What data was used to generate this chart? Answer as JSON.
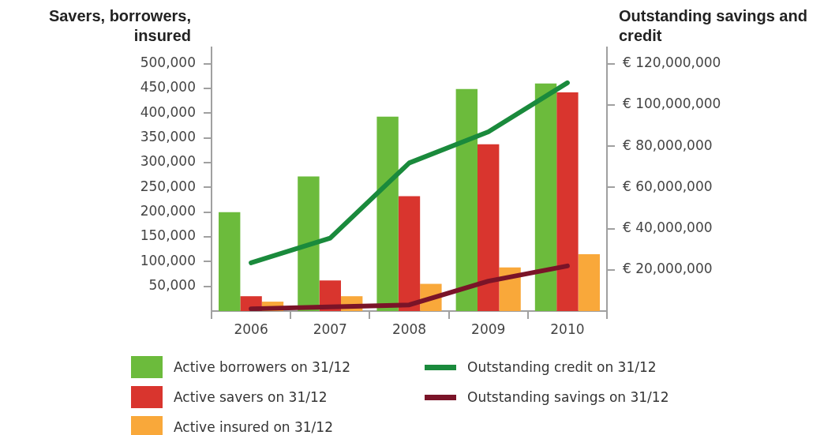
{
  "chart_data": {
    "type": "bar",
    "ylabel": "Savers, borrowers, insured",
    "y2label": "Outstanding savings and credit",
    "categories": [
      "2006",
      "2007",
      "2008",
      "2009",
      "2010"
    ],
    "series": [
      {
        "name": "Active borrowers on 31/12",
        "color": "#6cbb3c",
        "values": [
          200000,
          272000,
          393000,
          449000,
          460000
        ]
      },
      {
        "name": "Active savers on 31/12",
        "color": "#d9352e",
        "values": [
          30000,
          62000,
          232000,
          337000,
          442000
        ]
      },
      {
        "name": "Active insured on 31/12",
        "color": "#f9a83a",
        "values": [
          19000,
          30000,
          55000,
          88000,
          115000
        ]
      },
      {
        "name": "Outstanding credit on 31/12",
        "type": "line",
        "axis": "y2",
        "color": "#1a8a3c",
        "values": [
          23400000,
          35400000,
          71900000,
          87000000,
          110800000
        ]
      },
      {
        "name": "Outstanding savings on 31/12",
        "type": "line",
        "axis": "y2",
        "color": "#7a1428",
        "values": [
          1100000,
          2000000,
          3000000,
          14500000,
          21900000
        ]
      }
    ],
    "ylim": [
      0,
      533000
    ],
    "yticks": [
      {
        "value": 50000,
        "label": "50,000"
      },
      {
        "value": 100000,
        "label": "100,000"
      },
      {
        "value": 150000,
        "label": "150,000"
      },
      {
        "value": 200000,
        "label": "200,000"
      },
      {
        "value": 250000,
        "label": "250,000"
      },
      {
        "value": 300000,
        "label": "300,000"
      },
      {
        "value": 350000,
        "label": "350,000"
      },
      {
        "value": 400000,
        "label": "400,000"
      },
      {
        "value": 450000,
        "label": "450,000"
      },
      {
        "value": 500000,
        "label": "500,000"
      }
    ],
    "y2lim": [
      0,
      128000000
    ],
    "y2ticks": [
      {
        "value": 20000000,
        "label": "€ 20,000,000"
      },
      {
        "value": 40000000,
        "label": "€ 40,000,000"
      },
      {
        "value": 60000000,
        "label": "€ 60,000,000"
      },
      {
        "value": 80000000,
        "label": "€ 80,000,000"
      },
      {
        "value": 100000000,
        "label": "€ 100,000,000"
      },
      {
        "value": 120000000,
        "label": "€ 120,000,000"
      }
    ],
    "grid": false,
    "legend": "bottom",
    "marker": "none"
  }
}
